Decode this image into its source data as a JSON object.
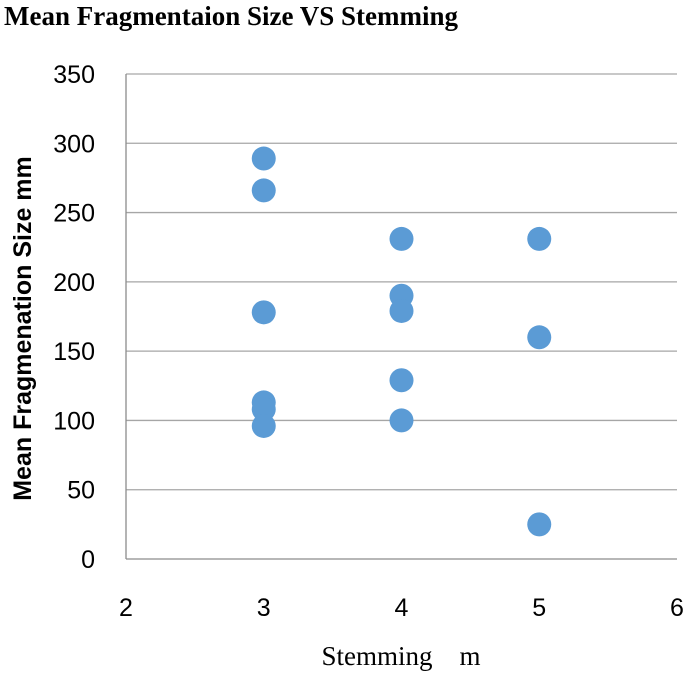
{
  "chart_data": {
    "type": "scatter",
    "title": "Mean Fragmentaion Size VS Stemming",
    "xlabel": "Stemming    m",
    "ylabel": "Mean Fragmenation Size mm",
    "xlim": [
      2,
      6
    ],
    "ylim": [
      0,
      350
    ],
    "xticks": [
      2,
      3,
      4,
      5,
      6
    ],
    "yticks": [
      0,
      50,
      100,
      150,
      200,
      250,
      300,
      350
    ],
    "grid": "horizontal",
    "marker_color": "#5b9bd5",
    "points": [
      {
        "x": 3,
        "y": 289
      },
      {
        "x": 3,
        "y": 266
      },
      {
        "x": 3,
        "y": 178
      },
      {
        "x": 3,
        "y": 113
      },
      {
        "x": 3,
        "y": 108
      },
      {
        "x": 3,
        "y": 96
      },
      {
        "x": 4,
        "y": 231
      },
      {
        "x": 4,
        "y": 190
      },
      {
        "x": 4,
        "y": 179
      },
      {
        "x": 4,
        "y": 129
      },
      {
        "x": 4,
        "y": 100
      },
      {
        "x": 5,
        "y": 231
      },
      {
        "x": 5,
        "y": 160
      },
      {
        "x": 5,
        "y": 25
      }
    ]
  }
}
